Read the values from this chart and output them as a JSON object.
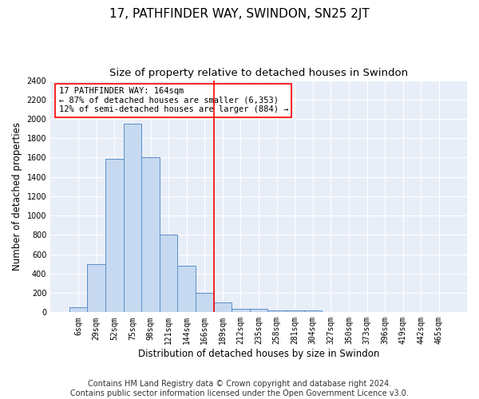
{
  "title": "17, PATHFINDER WAY, SWINDON, SN25 2JT",
  "subtitle": "Size of property relative to detached houses in Swindon",
  "xlabel": "Distribution of detached houses by size in Swindon",
  "ylabel": "Number of detached properties",
  "bar_labels": [
    "6sqm",
    "29sqm",
    "52sqm",
    "75sqm",
    "98sqm",
    "121sqm",
    "144sqm",
    "166sqm",
    "189sqm",
    "212sqm",
    "235sqm",
    "258sqm",
    "281sqm",
    "304sqm",
    "327sqm",
    "350sqm",
    "373sqm",
    "396sqm",
    "419sqm",
    "442sqm",
    "465sqm"
  ],
  "bar_values": [
    50,
    500,
    1590,
    1950,
    1600,
    800,
    480,
    200,
    100,
    35,
    35,
    20,
    20,
    20,
    0,
    0,
    0,
    0,
    0,
    0,
    0
  ],
  "bar_color": "#c6d9f0",
  "bar_edge_color": "#5b8fc9",
  "vline_x": 7,
  "vline_color": "red",
  "ylim": [
    0,
    2400
  ],
  "yticks": [
    0,
    200,
    400,
    600,
    800,
    1000,
    1200,
    1400,
    1600,
    1800,
    2000,
    2200,
    2400
  ],
  "annotation_title": "17 PATHFINDER WAY: 164sqm",
  "annotation_line1": "← 87% of detached houses are smaller (6,353)",
  "annotation_line2": "12% of semi-detached houses are larger (884) →",
  "annotation_box_color": "white",
  "annotation_box_edge_color": "red",
  "footer1": "Contains HM Land Registry data © Crown copyright and database right 2024.",
  "footer2": "Contains public sector information licensed under the Open Government Licence v3.0.",
  "bg_color": "#e8eef8",
  "grid_color": "white",
  "title_fontsize": 11,
  "subtitle_fontsize": 9.5,
  "axis_label_fontsize": 8.5,
  "tick_fontsize": 7,
  "annotation_fontsize": 7.5,
  "footer_fontsize": 7
}
